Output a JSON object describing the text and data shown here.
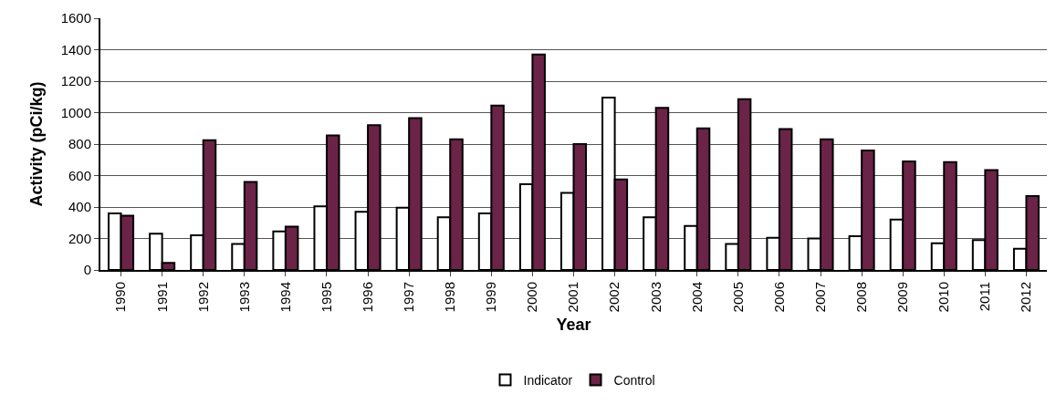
{
  "chart_data": {
    "type": "bar",
    "xlabel": "Year",
    "ylabel": "Activity (pCi/kg)",
    "categories": [
      "1990",
      "1991",
      "1992",
      "1993",
      "1994",
      "1995",
      "1996",
      "1997",
      "1998",
      "1999",
      "2000",
      "2001",
      "2002",
      "2003",
      "2004",
      "2005",
      "2006",
      "2007",
      "2008",
      "2009",
      "2010",
      "2011",
      "2012"
    ],
    "series": [
      {
        "name": "Indicator",
        "color": "#ffffff",
        "values": [
          360,
          230,
          220,
          165,
          245,
          405,
          370,
          395,
          335,
          360,
          545,
          490,
          1095,
          335,
          280,
          165,
          205,
          200,
          215,
          320,
          170,
          190,
          135
        ]
      },
      {
        "name": "Control",
        "color": "#6b2347",
        "values": [
          345,
          45,
          825,
          560,
          275,
          855,
          920,
          965,
          830,
          1045,
          1370,
          800,
          575,
          1030,
          900,
          1085,
          895,
          830,
          760,
          690,
          685,
          635,
          470
        ]
      }
    ],
    "ylim": [
      0,
      1600
    ],
    "yticks": [
      0,
      200,
      400,
      600,
      800,
      1000,
      1200,
      1400,
      1600
    ],
    "grid": "y",
    "legend": "bottom"
  }
}
